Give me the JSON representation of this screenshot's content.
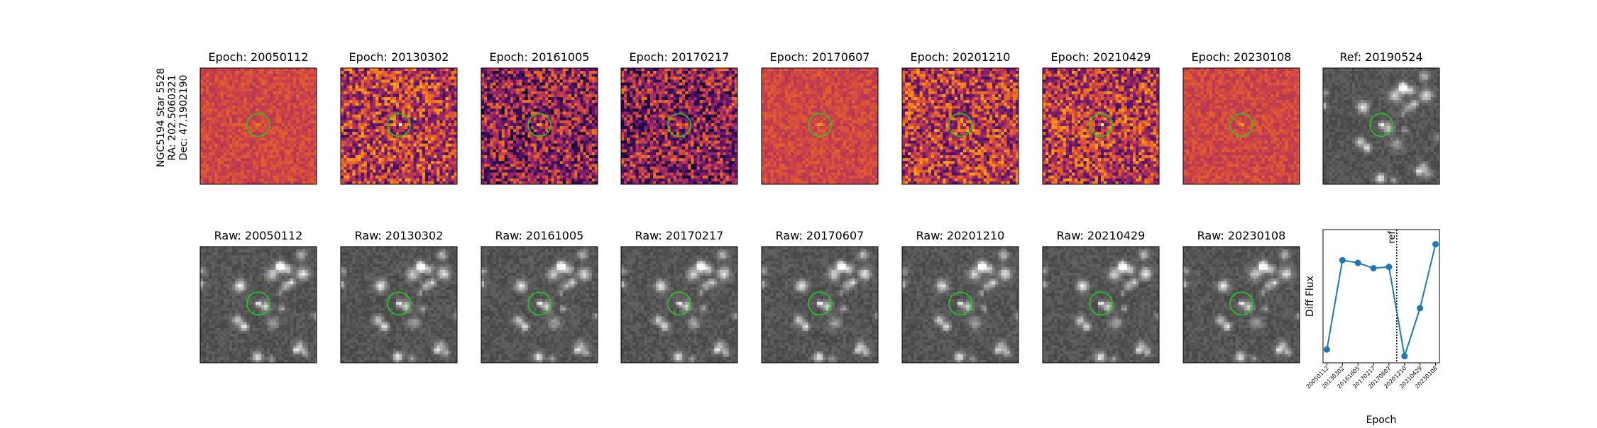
{
  "figure": {
    "target_label": [
      "NGC5194 Star 5528",
      "RA: 202.5060321",
      "Dec: 47.1902190"
    ],
    "diff_panels": [
      {
        "title": "Epoch: 20050112",
        "style": "flat"
      },
      {
        "title": "Epoch: 20130302",
        "style": "noisy"
      },
      {
        "title": "Epoch: 20161005",
        "style": "dark"
      },
      {
        "title": "Epoch: 20170217",
        "style": "dark"
      },
      {
        "title": "Epoch: 20170607",
        "style": "flat"
      },
      {
        "title": "Epoch: 20201210",
        "style": "noisy"
      },
      {
        "title": "Epoch: 20210429",
        "style": "noisy"
      },
      {
        "title": "Epoch: 20230108",
        "style": "flat"
      }
    ],
    "ref_panel": {
      "title": "Ref: 20190524"
    },
    "raw_panels": [
      {
        "title": "Raw: 20050112"
      },
      {
        "title": "Raw: 20130302"
      },
      {
        "title": "Raw: 20161005"
      },
      {
        "title": "Raw: 20170217"
      },
      {
        "title": "Raw: 20170607"
      },
      {
        "title": "Raw: 20201210"
      },
      {
        "title": "Raw: 20210429"
      },
      {
        "title": "Raw: 20230108"
      }
    ],
    "aperture_color": "#22cc22",
    "diff_colormap": "magma",
    "raw_colormap": "gray"
  },
  "chart_data": {
    "type": "line",
    "title": "",
    "xlabel": "Epoch",
    "ylabel": "Diff Flux",
    "categories": [
      "20050112",
      "20130302",
      "20161005",
      "20170217",
      "20170607",
      "20201210",
      "20210429",
      "20230108"
    ],
    "values": [
      0.05,
      0.72,
      0.7,
      0.66,
      0.67,
      0.0,
      0.36,
      0.84
    ],
    "ylim": [
      -0.05,
      0.95
    ],
    "yticks_visible": false,
    "reference_line": {
      "after_category_index": 4,
      "position": 0.5,
      "label": "ref",
      "style": "dotted"
    },
    "line_color": "#1f77b4",
    "marker": "circle",
    "grid": false
  }
}
